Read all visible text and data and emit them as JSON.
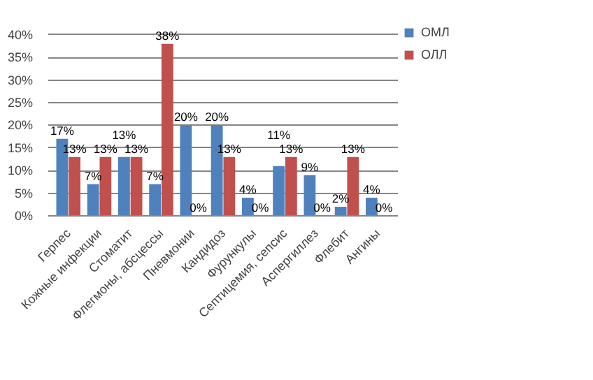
{
  "chart_data": {
    "type": "bar",
    "categories": [
      "Герпес",
      "Кожные инфекции",
      "Стоматит",
      "Флегмоны, абсцессы",
      "Пневмонии",
      "Кандидоз",
      "Фурункулы",
      "Септицемия, сепсис",
      "Аспергиллез",
      "Флебит",
      "Ангины"
    ],
    "series": [
      {
        "name": "ОМЛ",
        "color": "#4f81bd",
        "values": [
          17,
          7,
          13,
          7,
          20,
          20,
          4,
          11,
          9,
          2,
          4
        ],
        "value_labels": [
          "17%",
          "7%",
          "13%",
          "7%",
          "20%",
          "20%",
          "4%",
          "11%",
          "9%",
          "2%",
          "4%"
        ]
      },
      {
        "name": "ОЛЛ",
        "color": "#c0504d",
        "values": [
          13,
          13,
          13,
          38,
          0,
          13,
          0,
          13,
          0,
          13,
          0
        ],
        "value_labels": [
          "13%",
          "13%",
          "13%",
          "38%",
          "0%",
          "13%",
          "0%",
          "13%",
          "0%",
          "13%",
          "0%"
        ]
      }
    ],
    "ylim": [
      0,
      40
    ],
    "yticks": [
      {
        "value": 0,
        "label": "0%"
      },
      {
        "value": 5,
        "label": "5%"
      },
      {
        "value": 10,
        "label": "10%"
      },
      {
        "value": 15,
        "label": "15%"
      },
      {
        "value": 20,
        "label": "20%"
      },
      {
        "value": 25,
        "label": "25%"
      },
      {
        "value": 30,
        "label": "30%"
      },
      {
        "value": 35,
        "label": "35%"
      },
      {
        "value": 40,
        "label": "40%"
      }
    ],
    "grid": "y",
    "legend": "right"
  }
}
